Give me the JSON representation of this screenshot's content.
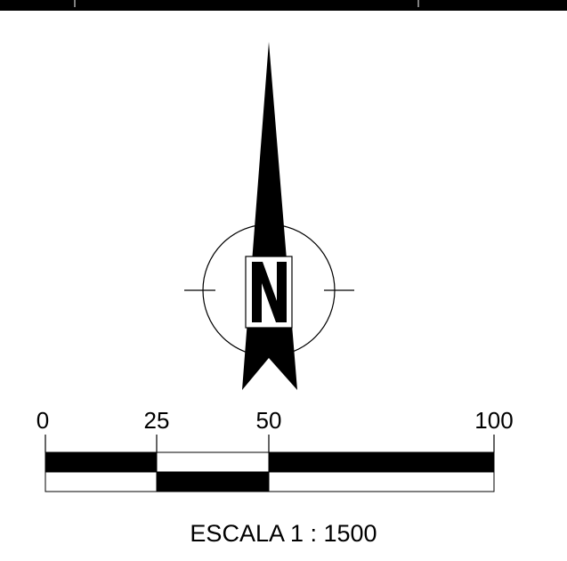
{
  "north_arrow": {
    "letter": "N"
  },
  "scale_bar": {
    "tick_labels": [
      "0",
      "25",
      "50",
      "100"
    ],
    "title": "ESCALA 1 : 1500"
  },
  "colors": {
    "ink": "#000000",
    "paper": "#ffffff"
  }
}
